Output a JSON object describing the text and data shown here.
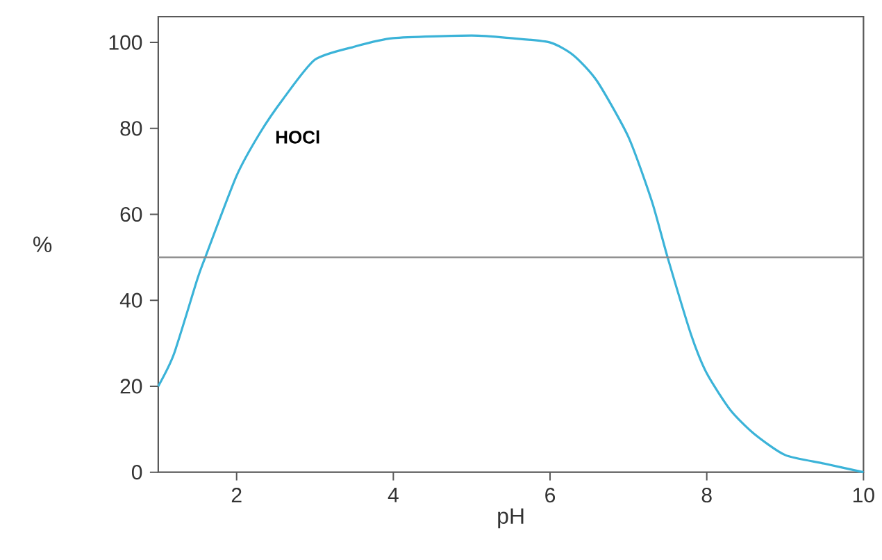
{
  "chart_data": {
    "type": "line",
    "xlabel": "pH",
    "ylabel": "%",
    "xlim": [
      1,
      10
    ],
    "ylim": [
      0,
      106
    ],
    "xticks": [
      2,
      4,
      6,
      8,
      10
    ],
    "yticks": [
      0,
      20,
      40,
      60,
      80,
      100
    ],
    "grid": false,
    "legend": false,
    "marker": "none",
    "line_style": "solid",
    "ref_lines": [
      {
        "axis": "y",
        "value": 50,
        "color": "#8a8a8a"
      }
    ],
    "series": [
      {
        "name": "HOCl",
        "color": "#3bb3d8",
        "x": [
          1.0,
          1.2,
          1.5,
          1.6,
          2.0,
          2.3,
          2.6,
          3.0,
          3.5,
          4.0,
          5.0,
          5.5,
          6.0,
          6.3,
          6.6,
          7.0,
          7.3,
          7.5,
          7.8,
          8.0,
          8.3,
          8.6,
          9.0,
          9.5,
          10.0
        ],
        "values": [
          20,
          27.5,
          45,
          50,
          69,
          79,
          87,
          96,
          99,
          101,
          101.6,
          101,
          100,
          97,
          91,
          78,
          63,
          50,
          32,
          23,
          14.5,
          9,
          4,
          2,
          0
        ]
      }
    ]
  }
}
